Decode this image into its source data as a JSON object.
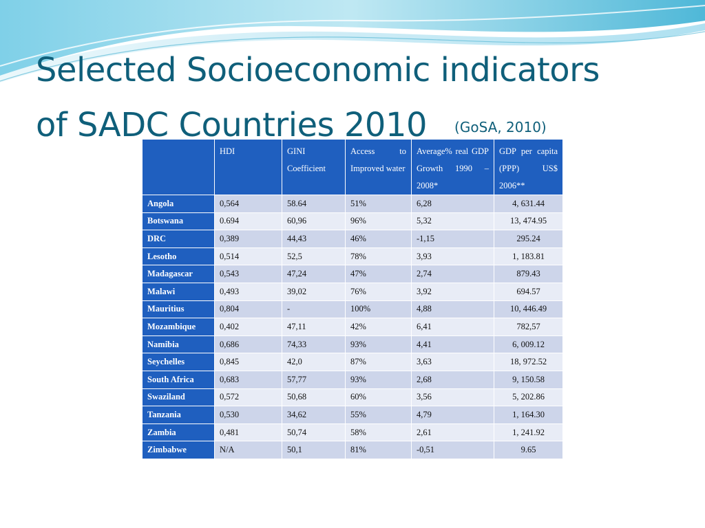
{
  "slide": {
    "title_line1": "Selected Socioeconomic indicators",
    "title_line2": "of  SADC Countries 2010",
    "source": "(GoSA, 2010)"
  },
  "table": {
    "headers": {
      "country": "",
      "hdi": "HDI",
      "gini": "GINI Coefficient",
      "water": "Access to Improved water",
      "growth": "Average% real GDP Growth 1990 – 2008*",
      "gdp": "GDP per capita (PPP) US$ 2006**"
    },
    "rows": [
      {
        "country": "Angola",
        "hdi": "0,564",
        "gini": "58.64",
        "water": "51%",
        "growth": "6,28",
        "gdp": "4, 631.44"
      },
      {
        "country": "Botswana",
        "hdi": "0.694",
        "gini": "60,96",
        "water": "96%",
        "growth": "5,32",
        "gdp": "13, 474.95"
      },
      {
        "country": "DRC",
        "hdi": "0,389",
        "gini": "44,43",
        "water": "46%",
        "growth": "-1,15",
        "gdp": "295.24"
      },
      {
        "country": "Lesotho",
        "hdi": "0,514",
        "gini": "52,5",
        "water": "78%",
        "growth": "3,93",
        "gdp": "1, 183.81"
      },
      {
        "country": "Madagascar",
        "hdi": "0,543",
        "gini": "47,24",
        "water": "47%",
        "growth": "2,74",
        "gdp": "879.43"
      },
      {
        "country": "Malawi",
        "hdi": "0,493",
        "gini": "39,02",
        "water": "76%",
        "growth": "3,92",
        "gdp": "694.57"
      },
      {
        "country": "Mauritius",
        "hdi": "0,804",
        "gini": "-",
        "water": "100%",
        "growth": "4,88",
        "gdp": "10, 446.49"
      },
      {
        "country": "Mozambique",
        "hdi": "0,402",
        "gini": "47,11",
        "water": "42%",
        "growth": "6,41",
        "gdp": "782,57"
      },
      {
        "country": "Namibia",
        "hdi": "0,686",
        "gini": "74,33",
        "water": "93%",
        "growth": "4,41",
        "gdp": "6, 009.12"
      },
      {
        "country": "Seychelles",
        "hdi": "0,845",
        "gini": "42,0",
        "water": "87%",
        "growth": "3,63",
        "gdp": "18, 972.52"
      },
      {
        "country": "South Africa",
        "hdi": "0,683",
        "gini": "57,77",
        "water": "93%",
        "growth": "2,68",
        "gdp": "9, 150.58"
      },
      {
        "country": "Swaziland",
        "hdi": "0,572",
        "gini": "50,68",
        "water": "60%",
        "growth": "3,56",
        "gdp": "5, 202.86"
      },
      {
        "country": "Tanzania",
        "hdi": "0,530",
        "gini": "34,62",
        "water": "55%",
        "growth": "4,79",
        "gdp": "1, 164.30"
      },
      {
        "country": "Zambia",
        "hdi": "0,481",
        "gini": "50,74",
        "water": "58%",
        "growth": "2,61",
        "gdp": "1, 241.92"
      },
      {
        "country": "Zimbabwe",
        "hdi": "N/A",
        "gini": "50,1",
        "water": "81%",
        "growth": "-0,51",
        "gdp": "9.65"
      }
    ]
  },
  "colors": {
    "title": "#0f5f7a",
    "header_bg": "#1f5fbf",
    "row_odd": "#cdd5ea",
    "row_even": "#e8ecf6"
  }
}
